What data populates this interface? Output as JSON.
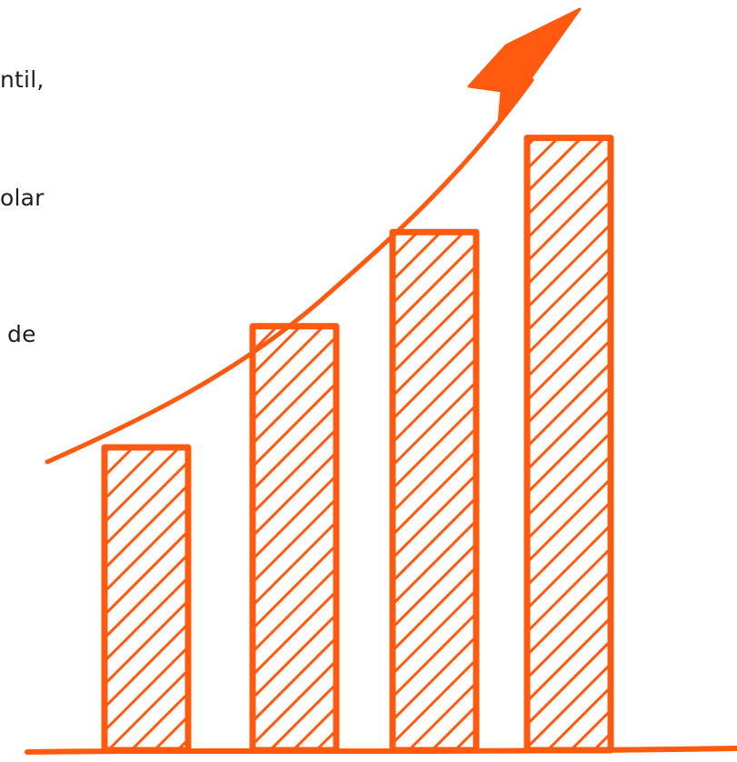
{
  "text_fragments": [
    "ntil,",
    "olar",
    "de"
  ],
  "colors": {
    "accent": "#ff5a0f",
    "text": "#1e1e1e",
    "background": "#ffffff"
  },
  "illustration": {
    "subject": "growth-bar-chart-sketch",
    "bar_levels": [
      0.45,
      0.63,
      0.77,
      0.91
    ]
  }
}
